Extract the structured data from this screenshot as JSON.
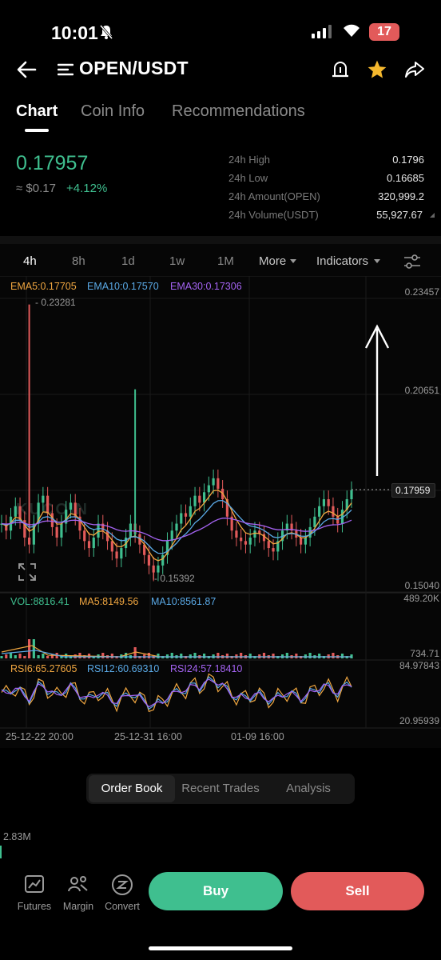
{
  "status": {
    "time": "10:01",
    "battery": "17"
  },
  "header": {
    "pair": "OPEN/USDT"
  },
  "tabs": [
    "Chart",
    "Coin Info",
    "Recommendations"
  ],
  "price": {
    "last": "0.17957",
    "usd": "≈ $0.17",
    "change": "+4.12%"
  },
  "stats": [
    {
      "label": "24h High",
      "value": "0.1796"
    },
    {
      "label": "24h Low",
      "value": "0.16685"
    },
    {
      "label": "24h Amount(OPEN)",
      "value": "320,999.2"
    },
    {
      "label": "24h Volume(USDT)",
      "value": "55,927.67"
    }
  ],
  "timeframes": [
    "4h",
    "8h",
    "1d",
    "1w",
    "1M",
    "More",
    "Indicators"
  ],
  "ema_legend": {
    "ema5": "EMA5:0.17705",
    "ema10": "EMA10:0.17570",
    "ema30": "EMA30:0.17306"
  },
  "price_axis": [
    "0.23457",
    "0.20651",
    "0.15040"
  ],
  "current_price_tag": "0.17959",
  "high_marker": "0.23281",
  "low_marker": "0.15392",
  "watermark": "KUCOIN",
  "vol_legend": {
    "vol": "VOL:8816.41",
    "ma5": "MA5:8149.56",
    "ma10": "MA10:8561.87"
  },
  "vol_axis": [
    "489.20K",
    "734.71"
  ],
  "rsi_legend": {
    "rsi6": "RSI6:65.27605",
    "rsi12": "RSI12:60.69310",
    "rsi24": "RSI24:57.18410"
  },
  "rsi_axis": [
    "84.97843",
    "20.95939"
  ],
  "x_labels": [
    "25-12-22 20:00",
    "25-12-31 16:00",
    "01-09 16:00"
  ],
  "bottom_tabs": [
    "Order Book",
    "Recent Trades",
    "Analysis"
  ],
  "depth_label": "2.83M",
  "nav": [
    "Futures",
    "Margin",
    "Convert"
  ],
  "actions": {
    "buy": "Buy",
    "sell": "Sell"
  },
  "colors": {
    "up": "#3fbf8f",
    "down": "#e25a5a",
    "ema5": "#f0a640",
    "ema10": "#5aa9e6",
    "ema30": "#a463f2"
  },
  "chart_data": {
    "type": "candlestick",
    "interval": "4h",
    "ylim": [
      0.1504,
      0.23457
    ],
    "close_series": [
      0.17,
      0.168,
      0.172,
      0.175,
      0.171,
      0.166,
      0.164,
      0.17,
      0.176,
      0.178,
      0.173,
      0.169,
      0.166,
      0.17,
      0.174,
      0.176,
      0.172,
      0.168,
      0.165,
      0.163,
      0.166,
      0.17,
      0.168,
      0.165,
      0.162,
      0.16,
      0.163,
      0.166,
      0.17,
      0.167,
      0.164,
      0.161,
      0.158,
      0.156,
      0.158,
      0.161,
      0.165,
      0.168,
      0.17,
      0.173,
      0.172,
      0.175,
      0.178,
      0.176,
      0.179,
      0.181,
      0.183,
      0.18,
      0.177,
      0.172,
      0.168,
      0.166,
      0.165,
      0.164,
      0.166,
      0.168,
      0.167,
      0.165,
      0.163,
      0.162,
      0.165,
      0.168,
      0.17,
      0.168,
      0.166,
      0.164,
      0.166,
      0.169,
      0.172,
      0.175,
      0.177,
      0.175,
      0.172,
      0.17,
      0.174,
      0.177,
      0.1796
    ],
    "high_marker": 0.23281,
    "low_marker": 0.15392
  }
}
